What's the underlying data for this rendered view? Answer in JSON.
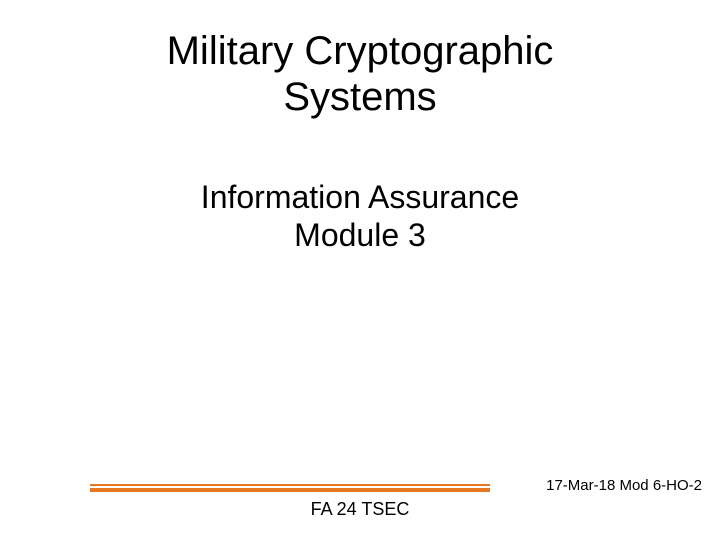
{
  "title_line1": "Military Cryptographic",
  "title_line2": "Systems",
  "subtitle_line1": "Information Assurance",
  "subtitle_line2": "Module 3",
  "footer_center": "FA 24 TSEC",
  "footer_right": "17-Mar-18 Mod 6-HO-2",
  "colors": {
    "accent": "#e87722",
    "text": "#000000",
    "background": "#ffffff"
  },
  "typography": {
    "title_fontsize": 40,
    "subtitle_fontsize": 32,
    "footer_center_fontsize": 18,
    "footer_right_fontsize": 15,
    "font_family": "Arial"
  }
}
